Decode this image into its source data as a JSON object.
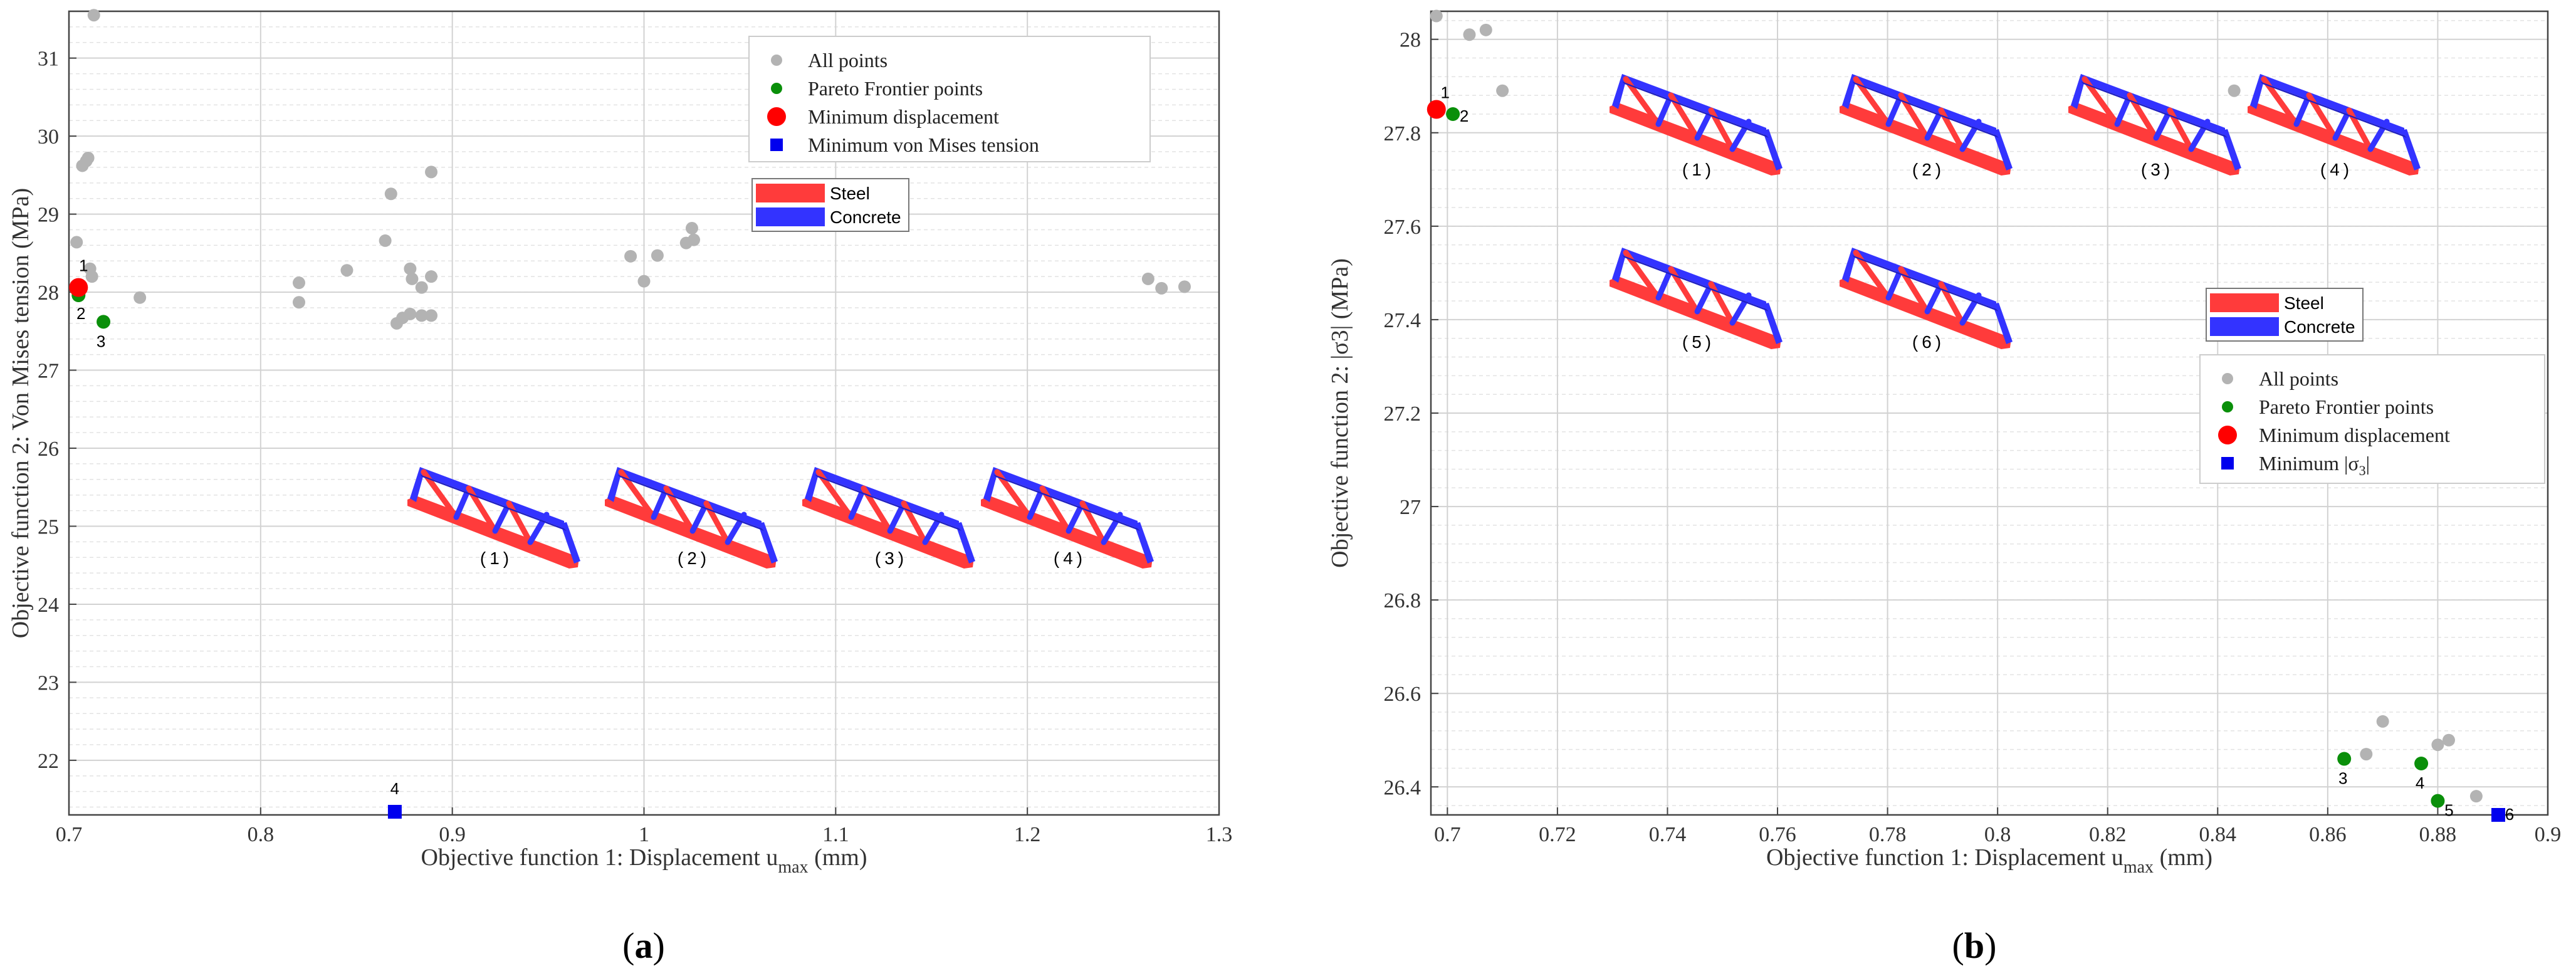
{
  "chart_data": [
    {
      "type": "scatter",
      "panel_label": "(a)",
      "xlabel": "Objective function 1: Displacement u",
      "xlabel_sub": "max",
      "xlabel_tail": " (mm)",
      "ylabel": "Objective function 2: Von Mises tension (MPa)",
      "xlim": [
        0.7,
        1.3
      ],
      "ylim": [
        21.3,
        31.6
      ],
      "xticks": [
        "0.7",
        "0.8",
        "0.9",
        "1",
        "1.1",
        "1.2",
        "1.3"
      ],
      "yticks": [
        "22",
        "23",
        "24",
        "25",
        "26",
        "27",
        "28",
        "29",
        "30",
        "31"
      ],
      "grid": true,
      "legend_position": "top-right",
      "legend": [
        "All points",
        "Pareto Frontier points",
        "Minimum displacement",
        "Minimum von Mises tension"
      ],
      "material_legend": [
        "Steel",
        "Concrete"
      ],
      "truss_captions": [
        "(1)",
        "(2)",
        "(3)",
        "(4)"
      ],
      "series": [
        {
          "name": "All points",
          "color": "#b3b3b3",
          "marker": "circle",
          "points": [
            [
              0.713,
              31.55
            ],
            [
              0.707,
              29.62
            ],
            [
              0.709,
              29.68
            ],
            [
              0.71,
              29.72
            ],
            [
              0.704,
              28.64
            ],
            [
              0.711,
              28.3
            ],
            [
              0.712,
              28.2
            ],
            [
              0.737,
              27.93
            ],
            [
              0.82,
              28.12
            ],
            [
              0.82,
              27.87
            ],
            [
              0.845,
              28.28
            ],
            [
              0.868,
              29.26
            ],
            [
              0.865,
              28.66
            ],
            [
              0.889,
              29.54
            ],
            [
              0.878,
              28.3
            ],
            [
              0.879,
              28.17
            ],
            [
              0.884,
              28.06
            ],
            [
              0.889,
              28.2
            ],
            [
              0.871,
              27.6
            ],
            [
              0.874,
              27.67
            ],
            [
              0.878,
              27.72
            ],
            [
              0.884,
              27.7
            ],
            [
              0.889,
              27.7
            ],
            [
              0.993,
              28.46
            ],
            [
              1.0,
              28.14
            ],
            [
              1.007,
              28.47
            ],
            [
              1.022,
              28.63
            ],
            [
              1.025,
              28.82
            ],
            [
              1.026,
              28.67
            ],
            [
              1.263,
              28.17
            ],
            [
              1.27,
              28.05
            ],
            [
              1.282,
              28.07
            ]
          ]
        },
        {
          "name": "Pareto Frontier points",
          "color": "#0a8f0a",
          "marker": "circle",
          "points": [
            [
              0.705,
              27.96
            ],
            [
              0.718,
              27.62
            ]
          ]
        },
        {
          "name": "Minimum displacement",
          "color": "#ff0000",
          "marker": "circle",
          "points": [
            [
              0.705,
              28.06
            ]
          ]
        },
        {
          "name": "Minimum von Mises tension",
          "color": "#0000ee",
          "marker": "square",
          "points": [
            [
              0.87,
              21.34
            ]
          ]
        }
      ],
      "point_labels": [
        {
          "text": "1",
          "x": 0.705,
          "y": 28.06
        },
        {
          "text": "2",
          "x": 0.705,
          "y": 27.96
        },
        {
          "text": "3",
          "x": 0.718,
          "y": 27.62
        },
        {
          "text": "4",
          "x": 0.87,
          "y": 21.34
        }
      ]
    },
    {
      "type": "scatter",
      "panel_label": "(b)",
      "xlabel": "Objective function 1: Displacement u",
      "xlabel_sub": "max",
      "xlabel_tail": " (mm)",
      "ylabel": "Objective function 2: |σ3| (MPa)",
      "xlim": [
        0.697,
        0.9
      ],
      "ylim": [
        26.34,
        28.06
      ],
      "xticks": [
        "0.7",
        "0.72",
        "0.74",
        "0.76",
        "0.78",
        "0.8",
        "0.82",
        "0.84",
        "0.86",
        "0.88",
        "0.9"
      ],
      "yticks": [
        "26.4",
        "26.6",
        "26.8",
        "27",
        "27.2",
        "27.4",
        "27.6",
        "27.8",
        "28"
      ],
      "grid": true,
      "legend_position": "middle-right",
      "legend": [
        "All points",
        "Pareto Frontier points",
        "Minimum displacement",
        "Minimum |σ3|"
      ],
      "material_legend": [
        "Steel",
        "Concrete"
      ],
      "truss_captions": [
        "(1)",
        "(2)",
        "(3)",
        "(4)",
        "(5)",
        "(6)"
      ],
      "series": [
        {
          "name": "All points",
          "color": "#b3b3b3",
          "marker": "circle",
          "points": [
            [
              0.698,
              28.05
            ],
            [
              0.704,
              28.01
            ],
            [
              0.707,
              28.02
            ],
            [
              0.71,
              27.89
            ],
            [
              0.843,
              27.89
            ],
            [
              0.87,
              26.54
            ],
            [
              0.867,
              26.47
            ],
            [
              0.88,
              26.49
            ],
            [
              0.882,
              26.5
            ],
            [
              0.887,
              26.38
            ]
          ]
        },
        {
          "name": "Pareto Frontier points",
          "color": "#0a8f0a",
          "marker": "circle",
          "points": [
            [
              0.701,
              27.84
            ],
            [
              0.863,
              26.46
            ],
            [
              0.877,
              26.45
            ],
            [
              0.88,
              26.37
            ]
          ]
        },
        {
          "name": "Minimum displacement",
          "color": "#ff0000",
          "marker": "circle",
          "points": [
            [
              0.698,
              27.85
            ]
          ]
        },
        {
          "name": "Minimum |σ3|",
          "color": "#0000ee",
          "marker": "square",
          "points": [
            [
              0.891,
              26.34
            ]
          ]
        }
      ],
      "point_labels": [
        {
          "text": "1",
          "x": 0.698,
          "y": 27.85
        },
        {
          "text": "2",
          "x": 0.701,
          "y": 27.84
        },
        {
          "text": "3",
          "x": 0.863,
          "y": 26.46
        },
        {
          "text": "4",
          "x": 0.877,
          "y": 26.45
        },
        {
          "text": "5",
          "x": 0.88,
          "y": 26.37
        },
        {
          "text": "6",
          "x": 0.891,
          "y": 26.34
        }
      ]
    }
  ],
  "colors": {
    "steel": "#ff3b3b",
    "concrete": "#3333ff",
    "grid": "#dcdcdc"
  }
}
